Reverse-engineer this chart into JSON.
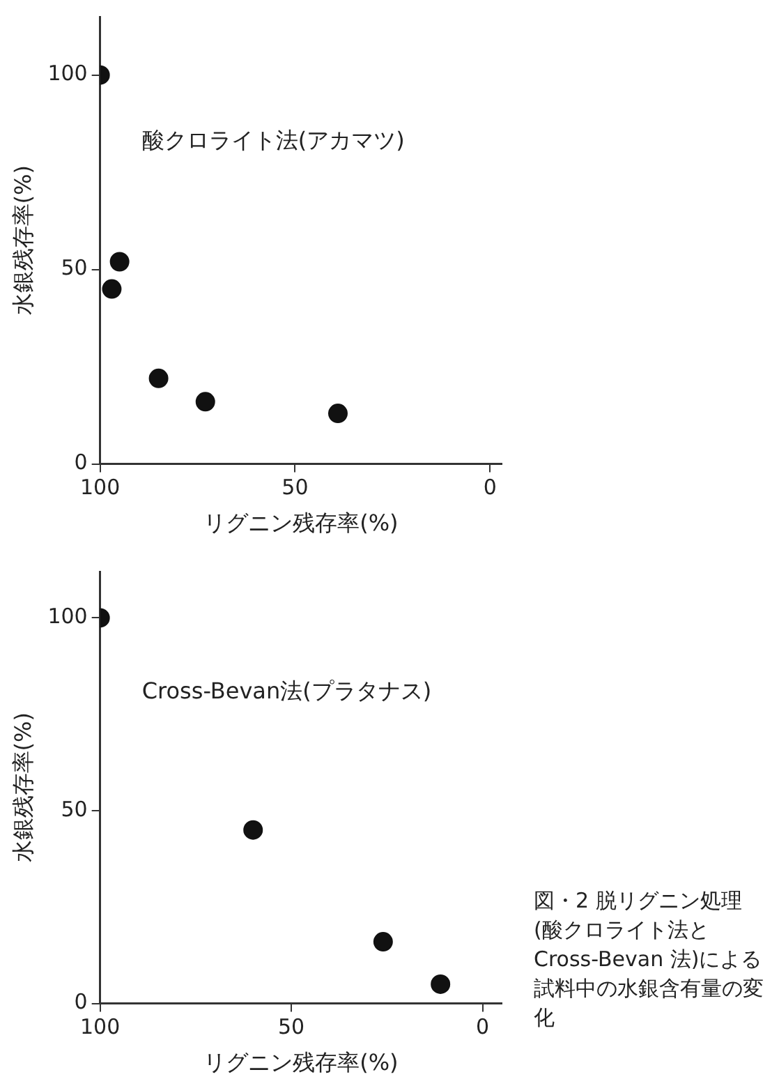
{
  "chart_data": [
    {
      "type": "scatter",
      "title": "酸クロライト法(アカマツ)",
      "xlabel": "リグニン残存率(%)",
      "ylabel": "水銀残存率(%)",
      "x": [
        100,
        95,
        97,
        85,
        73,
        39
      ],
      "values": [
        100,
        52,
        45,
        22,
        16,
        13
      ],
      "color": "#111111",
      "marker": "circle",
      "xlim": [
        100,
        -3
      ],
      "ylim": [
        0,
        115
      ],
      "xticks": [
        100,
        50,
        0
      ],
      "yticks": [
        0,
        50,
        100
      ],
      "grid": false
    },
    {
      "type": "scatter",
      "title": "Cross-Bevan法(プラタナス)",
      "xlabel": "リグニン残存率(%)",
      "ylabel": "水銀残存率(%)",
      "x": [
        100,
        60,
        26,
        11
      ],
      "values": [
        100,
        45,
        16,
        5
      ],
      "color": "#111111",
      "marker": "circle",
      "xlim": [
        100,
        -5
      ],
      "ylim": [
        0,
        112
      ],
      "xticks": [
        100,
        50,
        0
      ],
      "yticks": [
        0,
        50,
        100
      ],
      "grid": false,
      "annotations": [
        "図・2 脱リグニン処理(酸クロライト法とCross-Bevan 法)による試料中の水銀含有量の変化"
      ]
    }
  ]
}
